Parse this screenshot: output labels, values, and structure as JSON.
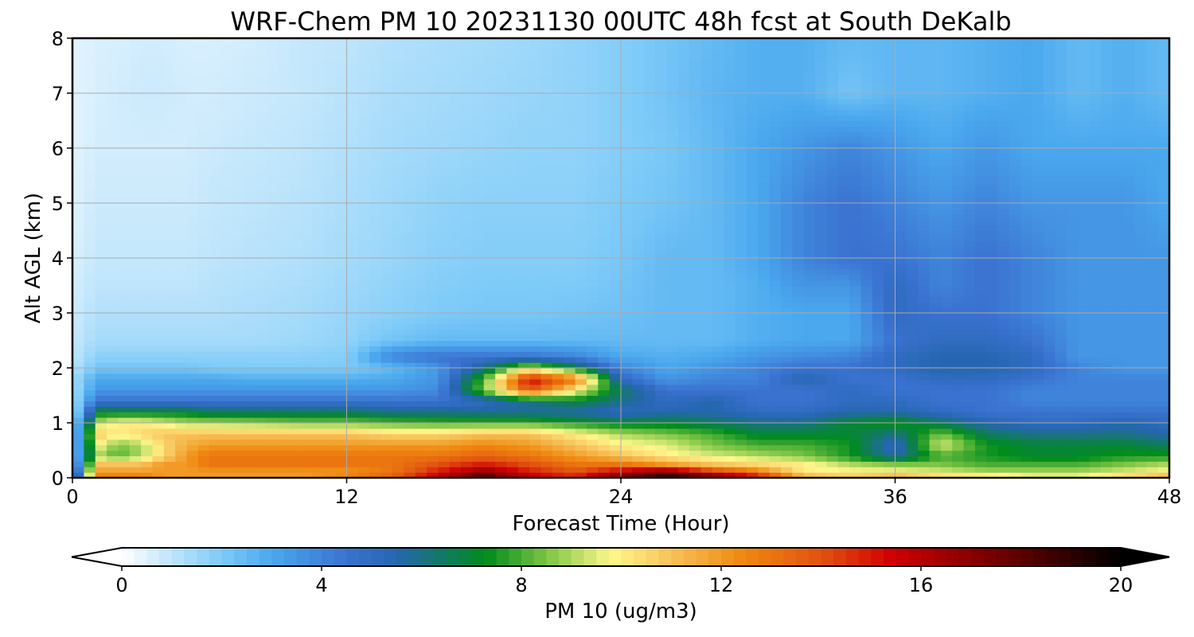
{
  "chart_data": {
    "type": "heatmap",
    "title": "WRF-Chem PM 10  20231130 00UTC 48h fcst at South DeKalb",
    "xlabel": "Forecast Time (Hour)",
    "ylabel": "Alt AGL (km)",
    "xlim": [
      0,
      48
    ],
    "ylim": [
      0,
      8
    ],
    "x_ticks": [
      0,
      12,
      24,
      36,
      48
    ],
    "y_ticks": [
      0,
      1,
      2,
      3,
      4,
      5,
      6,
      7,
      8
    ],
    "grid": true,
    "colorbar": {
      "label": "PM 10  (ug/m3)",
      "range": [
        0,
        20
      ],
      "ticks": [
        0,
        4,
        8,
        12,
        16,
        20
      ],
      "extend": "both",
      "orientation": "horizontal",
      "palette_stops": [
        {
          "value": 0,
          "color": "#ffffff"
        },
        {
          "value": 2,
          "color": "#7ecbf8"
        },
        {
          "value": 3,
          "color": "#4aa8ee"
        },
        {
          "value": 4.5,
          "color": "#3a72d0"
        },
        {
          "value": 5.5,
          "color": "#2566b0"
        },
        {
          "value": 7.3,
          "color": "#008c1c"
        },
        {
          "value": 8.5,
          "color": "#7cc444"
        },
        {
          "value": 9.8,
          "color": "#fff78c"
        },
        {
          "value": 11,
          "color": "#f7c25a"
        },
        {
          "value": 12.4,
          "color": "#f08a10"
        },
        {
          "value": 14,
          "color": "#e25210"
        },
        {
          "value": 15.4,
          "color": "#d00000"
        },
        {
          "value": 17,
          "color": "#8a0000"
        },
        {
          "value": 20,
          "color": "#000000"
        }
      ]
    },
    "x_hours": [
      0,
      0.5,
      1,
      2,
      3,
      4,
      5,
      6,
      8,
      10,
      12,
      14,
      16,
      18,
      20,
      22,
      24,
      26,
      28,
      30,
      32,
      34,
      36,
      38,
      40,
      42,
      44,
      46,
      48
    ],
    "z_km": [
      0,
      0.1,
      0.25,
      0.4,
      0.6,
      0.8,
      1.0,
      1.2,
      1.4,
      1.6,
      1.8,
      2.0,
      2.2,
      2.5,
      3.0,
      3.5,
      4.0,
      5.0,
      6.0,
      7.0,
      8.0
    ],
    "pm10_ugm3": [
      [
        4,
        7,
        13,
        13,
        13,
        12,
        12,
        12,
        12,
        12,
        13,
        14,
        16,
        19,
        16,
        15,
        18,
        20,
        18,
        16,
        12,
        11,
        12,
        11,
        11,
        10,
        10,
        11,
        12
      ],
      [
        3,
        6,
        12,
        12,
        12,
        12,
        12,
        12,
        12,
        12,
        12,
        13,
        15,
        17,
        15,
        14,
        16,
        18,
        15,
        13,
        10,
        10,
        10,
        9.5,
        9,
        9,
        9,
        9.5,
        10
      ],
      [
        2.5,
        5,
        11,
        11,
        11,
        12,
        12,
        13,
        13,
        13,
        13,
        13,
        14,
        15,
        14,
        13,
        13,
        12,
        11,
        10.5,
        10,
        9,
        8.5,
        8.5,
        8,
        8,
        8,
        8.5,
        9
      ],
      [
        2,
        4.5,
        9,
        8,
        9,
        10.5,
        12,
        13,
        13,
        13,
        13,
        13,
        13,
        13.5,
        13,
        12,
        11,
        10,
        9.5,
        9,
        8.5,
        7.5,
        5.5,
        8,
        7.5,
        7,
        7,
        7.5,
        7.5
      ],
      [
        2,
        4.5,
        10,
        8.5,
        9,
        10.5,
        11.5,
        12,
        12,
        12,
        12,
        12,
        12,
        12.5,
        12,
        11,
        10,
        9.5,
        8.5,
        8,
        8,
        7.5,
        5,
        9.5,
        7.5,
        7,
        7,
        7,
        6.5
      ],
      [
        2,
        4.5,
        11,
        10,
        10.5,
        11,
        11,
        11,
        11,
        11,
        11,
        10.5,
        10.5,
        11,
        11,
        10,
        9,
        8.5,
        8,
        7,
        7,
        7,
        6,
        8.5,
        6.5,
        6,
        6,
        6,
        5.5
      ],
      [
        2,
        4,
        9,
        10,
        10,
        9.5,
        9,
        9,
        8.8,
        8.5,
        8.5,
        8.2,
        8,
        8,
        8,
        7.5,
        7,
        7,
        6.5,
        6,
        6,
        7,
        7.5,
        6.5,
        5.5,
        5,
        5,
        5.5,
        5
      ],
      [
        1.5,
        3,
        7,
        7,
        7,
        7,
        7,
        6.5,
        6.5,
        6.5,
        6.5,
        6,
        6,
        5.8,
        5.8,
        5.5,
        5,
        5.5,
        5.5,
        5,
        5,
        5.5,
        5.5,
        5,
        4.5,
        4.5,
        4.5,
        4.5,
        4.5
      ],
      [
        1.5,
        2.5,
        4.5,
        4.5,
        4.5,
        4.5,
        4.5,
        4.5,
        4.5,
        4.5,
        4.5,
        4.5,
        4.5,
        5,
        6,
        7,
        6,
        5,
        5.5,
        4.5,
        4.5,
        5,
        5,
        4.5,
        4.5,
        4,
        4,
        4,
        4
      ],
      [
        1.5,
        2,
        3.5,
        3.5,
        3.5,
        3.5,
        3.5,
        3.5,
        3.5,
        3.5,
        3.5,
        3.5,
        3.8,
        8.5,
        14,
        10,
        6.5,
        4.5,
        4.5,
        4.5,
        4.5,
        5,
        4.5,
        4.5,
        4.5,
        4,
        4,
        4,
        4
      ],
      [
        1.5,
        2,
        3,
        3,
        3,
        3,
        3,
        3,
        2.8,
        2.8,
        2.8,
        3,
        3.5,
        8,
        15.5,
        13,
        5,
        3.5,
        4,
        4,
        5.5,
        4.5,
        4.5,
        5,
        5,
        4.5,
        4,
        4,
        4
      ],
      [
        1.2,
        1.5,
        2.2,
        2.2,
        2.2,
        2.2,
        2.2,
        2,
        2,
        2,
        2,
        2.5,
        3.5,
        6,
        9.5,
        7,
        4,
        3,
        3.5,
        4,
        4.5,
        4.5,
        5,
        5.5,
        5.5,
        5,
        4,
        3.5,
        3.5
      ],
      [
        1,
        1.3,
        1.8,
        1.8,
        1.8,
        1.8,
        1.8,
        1.8,
        1.8,
        1.8,
        1.9,
        4,
        4.5,
        4.5,
        4.5,
        4,
        3,
        2.8,
        3,
        3.5,
        3.8,
        4,
        5,
        5.5,
        5.5,
        5,
        3.5,
        3.5,
        3.5
      ],
      [
        0.9,
        1.1,
        1.4,
        1.4,
        1.4,
        1.4,
        1.4,
        1.4,
        1.4,
        1.5,
        1.7,
        2.2,
        2.5,
        2.5,
        2.5,
        2.5,
        2.5,
        2.5,
        2.5,
        2.8,
        3,
        3,
        4.5,
        5,
        5,
        4.5,
        3.5,
        3.5,
        3.5
      ],
      [
        0.8,
        0.9,
        1.2,
        1.2,
        1.2,
        1.2,
        1.2,
        1.2,
        1.3,
        1.4,
        1.6,
        1.8,
        2,
        2.1,
        2.1,
        2.2,
        2.3,
        2.5,
        2.5,
        2.8,
        3,
        3,
        5,
        4.5,
        4.5,
        4,
        3.5,
        3.5,
        3.5
      ],
      [
        0.7,
        0.8,
        1,
        1,
        1,
        1,
        1,
        1.1,
        1.2,
        1.3,
        1.5,
        1.7,
        1.9,
        2,
        2,
        2,
        2.2,
        2.5,
        2.5,
        2.8,
        3.5,
        3.5,
        5,
        4,
        4.5,
        4,
        3.5,
        3.5,
        3.5
      ],
      [
        0.6,
        0.7,
        0.9,
        0.9,
        0.9,
        0.9,
        0.9,
        1,
        1.1,
        1.2,
        1.4,
        1.6,
        1.8,
        1.9,
        1.9,
        1.9,
        2.1,
        2.5,
        2.5,
        3,
        4,
        4.5,
        4.5,
        4,
        4.5,
        4,
        3.5,
        3.5,
        3.5
      ],
      [
        0.5,
        0.6,
        0.8,
        0.8,
        0.8,
        0.8,
        0.8,
        0.9,
        1,
        1.1,
        1.3,
        1.5,
        1.7,
        1.8,
        1.8,
        1.8,
        2,
        2.2,
        2.5,
        3,
        4,
        4.5,
        4,
        3.5,
        4,
        3.5,
        3.5,
        3.5,
        3
      ],
      [
        0.5,
        0.5,
        0.7,
        0.7,
        0.7,
        0.7,
        0.7,
        0.8,
        0.9,
        1,
        1.2,
        1.4,
        1.5,
        1.6,
        1.7,
        1.7,
        1.9,
        2.1,
        2.5,
        3,
        3.5,
        4,
        3.5,
        3,
        3.5,
        3,
        3,
        3,
        3
      ],
      [
        0.5,
        0.5,
        0.6,
        0.7,
        0.8,
        0.8,
        0.7,
        0.7,
        0.8,
        0.9,
        1.1,
        1.3,
        1.4,
        1.5,
        1.6,
        1.7,
        1.9,
        2.2,
        2.6,
        2.8,
        2.8,
        2.2,
        2.6,
        2.6,
        2.8,
        3,
        2.5,
        2.8,
        2.5
      ],
      [
        0.5,
        0.5,
        0.6,
        0.6,
        0.7,
        0.7,
        0.6,
        0.6,
        0.7,
        0.9,
        1,
        1.2,
        1.3,
        1.4,
        1.5,
        1.7,
        1.9,
        2.2,
        2.5,
        2.8,
        2.8,
        2.5,
        2.6,
        2.6,
        2.8,
        3,
        2.5,
        2.8,
        2.5
      ]
    ]
  }
}
